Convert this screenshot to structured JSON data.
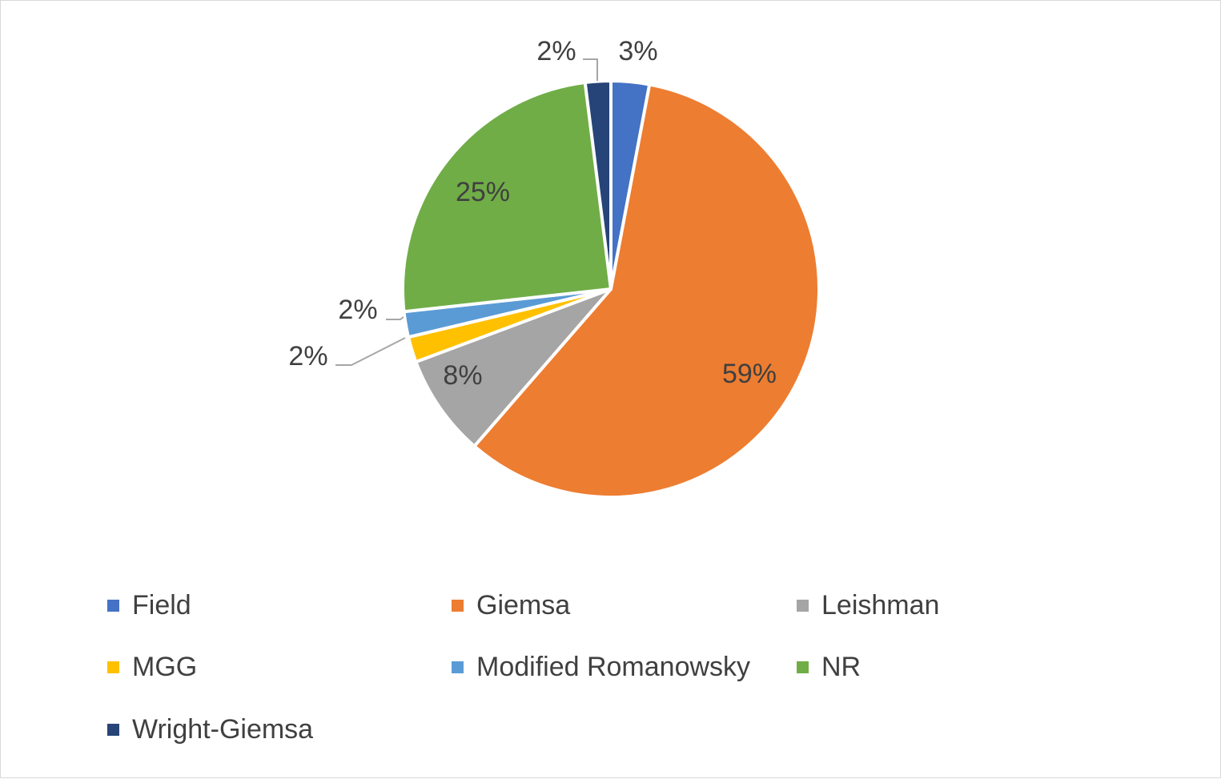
{
  "chart_data": {
    "type": "pie",
    "title": "",
    "legend_position": "bottom",
    "slices": [
      {
        "name": "Field",
        "value": 3,
        "label": "3%",
        "color": "#4472C4"
      },
      {
        "name": "Giemsa",
        "value": 59,
        "label": "59%",
        "color": "#ED7D31"
      },
      {
        "name": "Leishman",
        "value": 8,
        "label": "8%",
        "color": "#A5A5A5"
      },
      {
        "name": "MGG",
        "value": 2,
        "label": "2%",
        "color": "#FFC000"
      },
      {
        "name": "Modified Romanowsky",
        "value": 2,
        "label": "2%",
        "color": "#5B9BD5"
      },
      {
        "name": "NR",
        "value": 25,
        "label": "25%",
        "color": "#70AD47"
      },
      {
        "name": "Wright-Giemsa",
        "value": 2,
        "label": "2%",
        "color": "#264478"
      }
    ]
  }
}
